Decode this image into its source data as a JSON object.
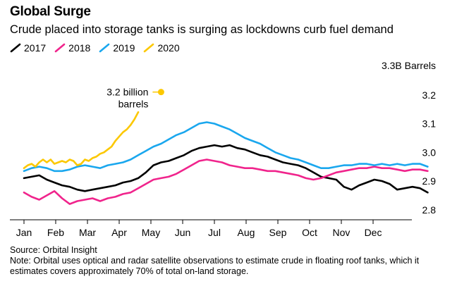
{
  "header": {
    "title": "Global Surge",
    "subtitle": "Crude placed into storage tanks is surging as lockdowns curb fuel demand"
  },
  "footer": {
    "source": "Source: Orbital Insight",
    "note": "Note: Orbital uses optical and radar satellite observations to estimate crude in floating roof tanks, which it estimates covers approximately 70% of total on-land storage."
  },
  "chart_data": {
    "type": "line",
    "title": "Global Surge",
    "subtitle": "Crude placed into storage tanks is surging as lockdowns curb fuel demand",
    "y_unit_label": "3.3B Barrels",
    "ylim": [
      2.77,
      3.3
    ],
    "xlim": [
      0,
      1
    ],
    "y_ticks": [
      2.8,
      2.9,
      3.0,
      3.1,
      3.2
    ],
    "x_ticks": [
      {
        "label": "Jan",
        "pos": 0.0
      },
      {
        "label": "Feb",
        "pos": 0.0833
      },
      {
        "label": "Mar",
        "pos": 0.1667
      },
      {
        "label": "Apr",
        "pos": 0.25
      },
      {
        "label": "May",
        "pos": 0.3333
      },
      {
        "label": "Jun",
        "pos": 0.4167
      },
      {
        "label": "Jul",
        "pos": 0.5
      },
      {
        "label": "Aug",
        "pos": 0.5833
      },
      {
        "label": "Sep",
        "pos": 0.6667
      },
      {
        "label": "Oct",
        "pos": 0.75
      },
      {
        "label": "Nov",
        "pos": 0.8333
      },
      {
        "label": "Dec",
        "pos": 0.9167
      }
    ],
    "grid": false,
    "legend_placement": "top-left",
    "series": [
      {
        "name": "2017",
        "color": "#000000",
        "points": [
          [
            0,
            2.91
          ],
          [
            0.02,
            2.915
          ],
          [
            0.04,
            2.92
          ],
          [
            0.06,
            2.905
          ],
          [
            0.08,
            2.895
          ],
          [
            0.1,
            2.885
          ],
          [
            0.12,
            2.88
          ],
          [
            0.14,
            2.87
          ],
          [
            0.16,
            2.865
          ],
          [
            0.18,
            2.87
          ],
          [
            0.2,
            2.875
          ],
          [
            0.22,
            2.88
          ],
          [
            0.24,
            2.885
          ],
          [
            0.26,
            2.895
          ],
          [
            0.28,
            2.9
          ],
          [
            0.3,
            2.91
          ],
          [
            0.32,
            2.93
          ],
          [
            0.34,
            2.955
          ],
          [
            0.36,
            2.965
          ],
          [
            0.38,
            2.97
          ],
          [
            0.4,
            2.98
          ],
          [
            0.42,
            2.99
          ],
          [
            0.44,
            3.005
          ],
          [
            0.46,
            3.015
          ],
          [
            0.48,
            3.02
          ],
          [
            0.5,
            3.025
          ],
          [
            0.52,
            3.02
          ],
          [
            0.54,
            3.025
          ],
          [
            0.56,
            3.015
          ],
          [
            0.58,
            3.01
          ],
          [
            0.6,
            3.0
          ],
          [
            0.62,
            2.99
          ],
          [
            0.64,
            2.985
          ],
          [
            0.66,
            2.975
          ],
          [
            0.68,
            2.965
          ],
          [
            0.7,
            2.96
          ],
          [
            0.72,
            2.955
          ],
          [
            0.74,
            2.945
          ],
          [
            0.76,
            2.93
          ],
          [
            0.78,
            2.915
          ],
          [
            0.8,
            2.91
          ],
          [
            0.82,
            2.905
          ],
          [
            0.84,
            2.88
          ],
          [
            0.86,
            2.87
          ],
          [
            0.88,
            2.885
          ],
          [
            0.9,
            2.895
          ],
          [
            0.92,
            2.905
          ],
          [
            0.94,
            2.9
          ],
          [
            0.96,
            2.89
          ],
          [
            0.98,
            2.87
          ],
          [
            1.0,
            2.875
          ],
          [
            1.02,
            2.88
          ],
          [
            1.04,
            2.875
          ],
          [
            1.06,
            2.86
          ]
        ]
      },
      {
        "name": "2018",
        "color": "#f0248c",
        "points": [
          [
            0,
            2.86
          ],
          [
            0.02,
            2.845
          ],
          [
            0.04,
            2.835
          ],
          [
            0.06,
            2.85
          ],
          [
            0.08,
            2.865
          ],
          [
            0.1,
            2.84
          ],
          [
            0.12,
            2.82
          ],
          [
            0.14,
            2.83
          ],
          [
            0.16,
            2.835
          ],
          [
            0.18,
            2.84
          ],
          [
            0.2,
            2.83
          ],
          [
            0.22,
            2.84
          ],
          [
            0.24,
            2.845
          ],
          [
            0.26,
            2.855
          ],
          [
            0.28,
            2.86
          ],
          [
            0.3,
            2.875
          ],
          [
            0.32,
            2.89
          ],
          [
            0.34,
            2.905
          ],
          [
            0.36,
            2.91
          ],
          [
            0.38,
            2.915
          ],
          [
            0.4,
            2.925
          ],
          [
            0.42,
            2.94
          ],
          [
            0.44,
            2.955
          ],
          [
            0.46,
            2.97
          ],
          [
            0.48,
            2.975
          ],
          [
            0.5,
            2.97
          ],
          [
            0.52,
            2.965
          ],
          [
            0.54,
            2.955
          ],
          [
            0.56,
            2.95
          ],
          [
            0.58,
            2.945
          ],
          [
            0.6,
            2.945
          ],
          [
            0.62,
            2.94
          ],
          [
            0.64,
            2.935
          ],
          [
            0.66,
            2.935
          ],
          [
            0.68,
            2.93
          ],
          [
            0.7,
            2.925
          ],
          [
            0.72,
            2.92
          ],
          [
            0.74,
            2.91
          ],
          [
            0.76,
            2.905
          ],
          [
            0.78,
            2.91
          ],
          [
            0.8,
            2.92
          ],
          [
            0.82,
            2.93
          ],
          [
            0.84,
            2.935
          ],
          [
            0.86,
            2.94
          ],
          [
            0.88,
            2.945
          ],
          [
            0.9,
            2.945
          ],
          [
            0.92,
            2.95
          ],
          [
            0.94,
            2.945
          ],
          [
            0.96,
            2.945
          ],
          [
            0.98,
            2.94
          ],
          [
            1.0,
            2.935
          ],
          [
            1.02,
            2.94
          ],
          [
            1.04,
            2.94
          ],
          [
            1.06,
            2.935
          ]
        ]
      },
      {
        "name": "2019",
        "color": "#1aa7ee",
        "points": [
          [
            0,
            2.935
          ],
          [
            0.02,
            2.945
          ],
          [
            0.04,
            2.95
          ],
          [
            0.06,
            2.945
          ],
          [
            0.08,
            2.935
          ],
          [
            0.1,
            2.935
          ],
          [
            0.12,
            2.94
          ],
          [
            0.14,
            2.95
          ],
          [
            0.16,
            2.955
          ],
          [
            0.18,
            2.95
          ],
          [
            0.2,
            2.945
          ],
          [
            0.22,
            2.955
          ],
          [
            0.24,
            2.96
          ],
          [
            0.26,
            2.965
          ],
          [
            0.28,
            2.975
          ],
          [
            0.3,
            2.99
          ],
          [
            0.32,
            3.005
          ],
          [
            0.34,
            3.02
          ],
          [
            0.36,
            3.03
          ],
          [
            0.38,
            3.045
          ],
          [
            0.4,
            3.06
          ],
          [
            0.42,
            3.07
          ],
          [
            0.44,
            3.085
          ],
          [
            0.46,
            3.1
          ],
          [
            0.48,
            3.105
          ],
          [
            0.5,
            3.1
          ],
          [
            0.52,
            3.09
          ],
          [
            0.54,
            3.08
          ],
          [
            0.56,
            3.065
          ],
          [
            0.58,
            3.05
          ],
          [
            0.6,
            3.04
          ],
          [
            0.62,
            3.03
          ],
          [
            0.64,
            3.015
          ],
          [
            0.66,
            3.0
          ],
          [
            0.68,
            2.99
          ],
          [
            0.7,
            2.98
          ],
          [
            0.72,
            2.975
          ],
          [
            0.74,
            2.965
          ],
          [
            0.76,
            2.955
          ],
          [
            0.78,
            2.945
          ],
          [
            0.8,
            2.945
          ],
          [
            0.82,
            2.95
          ],
          [
            0.84,
            2.955
          ],
          [
            0.86,
            2.955
          ],
          [
            0.88,
            2.96
          ],
          [
            0.9,
            2.96
          ],
          [
            0.92,
            2.955
          ],
          [
            0.94,
            2.96
          ],
          [
            0.96,
            2.955
          ],
          [
            0.98,
            2.96
          ],
          [
            1.0,
            2.955
          ],
          [
            1.02,
            2.96
          ],
          [
            1.04,
            2.96
          ],
          [
            1.06,
            2.95
          ]
        ]
      },
      {
        "name": "2020",
        "color": "#fcc800",
        "points": [
          [
            0,
            2.945
          ],
          [
            0.01,
            2.955
          ],
          [
            0.02,
            2.96
          ],
          [
            0.03,
            2.95
          ],
          [
            0.04,
            2.965
          ],
          [
            0.05,
            2.975
          ],
          [
            0.06,
            2.965
          ],
          [
            0.07,
            2.975
          ],
          [
            0.08,
            2.96
          ],
          [
            0.09,
            2.965
          ],
          [
            0.1,
            2.97
          ],
          [
            0.11,
            2.965
          ],
          [
            0.12,
            2.975
          ],
          [
            0.13,
            2.97
          ],
          [
            0.14,
            2.955
          ],
          [
            0.15,
            2.96
          ],
          [
            0.16,
            2.975
          ],
          [
            0.17,
            2.97
          ],
          [
            0.18,
            2.98
          ],
          [
            0.19,
            2.985
          ],
          [
            0.2,
            2.995
          ],
          [
            0.21,
            3.0
          ],
          [
            0.22,
            3.01
          ],
          [
            0.23,
            3.02
          ],
          [
            0.24,
            3.04
          ],
          [
            0.25,
            3.055
          ],
          [
            0.26,
            3.07
          ],
          [
            0.27,
            3.08
          ],
          [
            0.28,
            3.095
          ],
          [
            0.29,
            3.115
          ],
          [
            0.3,
            3.14
          ]
        ]
      }
    ],
    "annotation": {
      "text_lines": [
        "3.2 billion",
        "barrels"
      ],
      "point": [
        0.36,
        3.21
      ],
      "color": "#fcc800"
    }
  }
}
